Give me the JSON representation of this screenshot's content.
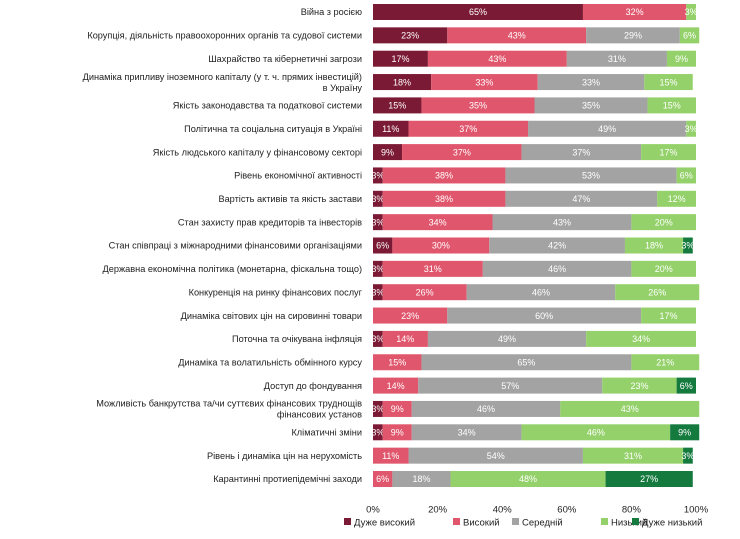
{
  "chart_data": {
    "type": "bar",
    "orientation": "horizontal-stacked-100",
    "categories": [
      "Війна з росією",
      "Корупція, діяльність правоохоронних органів та судової системи",
      "Шахрайство та кібернетичні загрози",
      [
        "Динаміка припливу іноземного капіталу (у т. ч. прямих інвестицій)",
        "в Україну"
      ],
      "Якість законодавства та податкової системи",
      "Політична та соціальна ситуація в Україні",
      "Якість людського капіталу у фінансовому секторі",
      "Рівень економічної активності",
      "Вартість активів та якість застави",
      "Стан захисту прав кредиторів та інвесторів",
      "Стан співпраці з міжнародними фінансовими організаціями",
      "Державна економічна політика (монетарна, фіскальна тощо)",
      "Конкуренція на ринку фінансових послуг",
      "Динаміка світових цін на сировинні товари",
      "Поточна та очікувана інфляція",
      "Динаміка та волатильність обмінного курсу",
      "Доступ до фондування",
      [
        "Можливість банкрутства та/чи суттєвих фінансових труднощів",
        "фінансових установ"
      ],
      "Кліматичні зміни",
      "Рівень і динаміка цін на нерухомість",
      "Карантинні протиепідемічні заходи"
    ],
    "series": [
      {
        "name": "Дуже високий",
        "color": "#7b1a34",
        "values": [
          65,
          23,
          17,
          18,
          15,
          11,
          9,
          3,
          3,
          3,
          6,
          3,
          3,
          0,
          3,
          0,
          0,
          3,
          3,
          0,
          0
        ],
        "labels": [
          "65%",
          "23%",
          "17%",
          "18%",
          "15%",
          "11%",
          "9%",
          "3%",
          "3%",
          "3%",
          "6%",
          "3%",
          "3%",
          "",
          "3%",
          "",
          "",
          "3%",
          "3%",
          "",
          ""
        ]
      },
      {
        "name": "Високий",
        "color": "#e0566c",
        "values": [
          32,
          43,
          43,
          33,
          35,
          37,
          37,
          38,
          38,
          34,
          30,
          31,
          26,
          23,
          14,
          15,
          14,
          9,
          9,
          11,
          6
        ],
        "labels": [
          "32%",
          "43%",
          "43%",
          "33%",
          "35%",
          "37%",
          "37%",
          "38%",
          "38%",
          "34%",
          "30%",
          "31%",
          "26%",
          "23%",
          "14%",
          "15%",
          "14%",
          "9%",
          "9%",
          "11%",
          "6%"
        ]
      },
      {
        "name": "Середній",
        "color": "#a3a3a3",
        "values": [
          0,
          29,
          31,
          33,
          35,
          49,
          37,
          53,
          47,
          43,
          42,
          46,
          46,
          60,
          49,
          65,
          57,
          46,
          34,
          54,
          18
        ],
        "labels": [
          "",
          "29%",
          "31%",
          "33%",
          "35%",
          "49%",
          "37%",
          "53%",
          "47%",
          "43%",
          "42%",
          "46%",
          "46%",
          "60%",
          "49%",
          "65%",
          "57%",
          "46%",
          "34%",
          "54%",
          "18%"
        ]
      },
      {
        "name": "Низький",
        "color": "#94d16a",
        "values": [
          3,
          6,
          9,
          15,
          15,
          3,
          17,
          6,
          12,
          20,
          18,
          20,
          26,
          17,
          34,
          21,
          23,
          43,
          46,
          31,
          48
        ],
        "labels": [
          "3%",
          "6%",
          "9%",
          "15%",
          "15%",
          "3%",
          "17%",
          "6%",
          "12%",
          "20%",
          "18%",
          "20%",
          "26%",
          "17%",
          "34%",
          "21%",
          "23%",
          "43%",
          "46%",
          "31%",
          "48%"
        ]
      },
      {
        "name": "Дуже низький",
        "color": "#157a3e",
        "values": [
          0,
          0,
          0,
          0,
          0,
          0,
          0,
          0,
          0,
          0,
          3,
          0,
          0,
          0,
          0,
          0,
          6,
          0,
          9,
          3,
          27
        ],
        "labels": [
          "",
          "",
          "",
          "",
          "",
          "",
          "",
          "",
          "",
          "",
          "3%",
          "",
          "",
          "",
          "",
          "",
          "6%",
          "",
          "9%",
          "3%",
          "27%"
        ]
      }
    ],
    "xlim": [
      0,
      100
    ],
    "xticks": [
      "0%",
      "20%",
      "40%",
      "60%",
      "80%",
      "100%"
    ],
    "legend_position": "bottom",
    "grid": false
  }
}
